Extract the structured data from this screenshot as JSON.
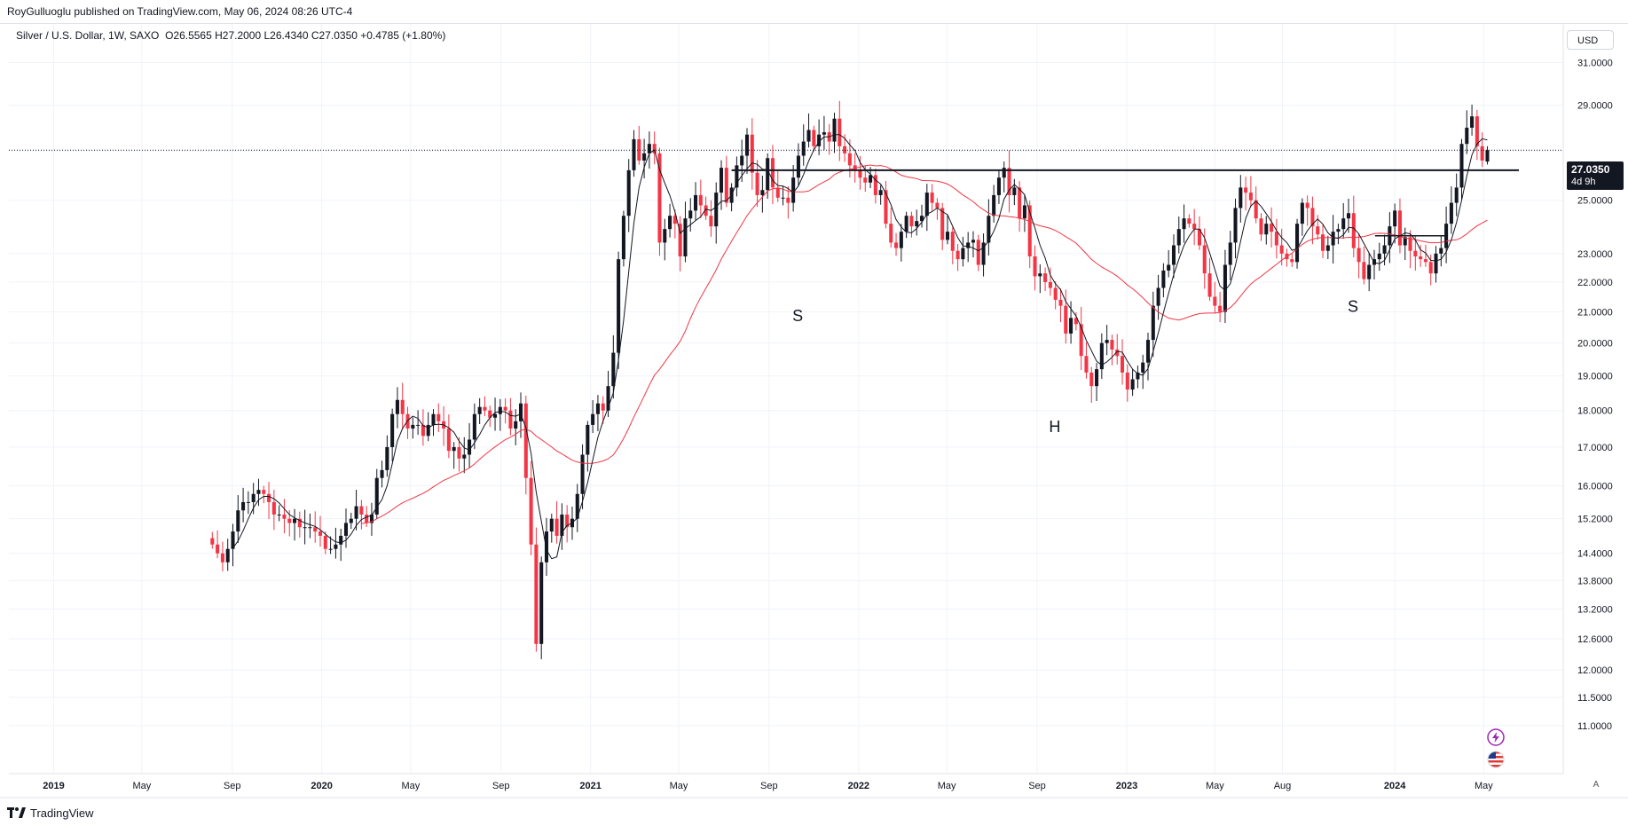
{
  "header": {
    "publisher_text": "RoyGulluoglu published on TradingView.com, May 06, 2024 08:26 UTC-4"
  },
  "legend": {
    "symbol": "Silver / U.S. Dollar, 1W, SAXO",
    "ohlc": "O26.5565  H27.2000  L26.4340  C27.0350  +0.4785 (+1.80%)"
  },
  "toolbar": {
    "currency_label": "USD",
    "auto_label": "A"
  },
  "last_price": {
    "value": "27.0350",
    "countdown": "4d 9h"
  },
  "footer": {
    "logo_text": "TradingView"
  },
  "icons": {
    "bolt": "bolt-icon",
    "flag": "us-flag-icon",
    "logo": "tradingview-logo-icon"
  },
  "colors": {
    "up": "#131722",
    "down": "#f23645",
    "sma_fast": "#131722",
    "sma_slow": "#f23645",
    "grid": "#f0f3fa"
  },
  "chart_data": {
    "type": "candlestick",
    "scale": "log",
    "y_ticks": [
      11.0,
      11.5,
      12.0,
      12.6,
      13.2,
      13.8,
      14.4,
      15.2,
      16.0,
      17.0,
      18.0,
      19.0,
      20.0,
      21.0,
      22.0,
      23.0,
      25.0,
      27.0,
      29.0,
      31.0
    ],
    "y_tick_labels": [
      "11.0000",
      "11.5000",
      "12.0000",
      "12.6000",
      "13.2000",
      "13.8000",
      "14.4000",
      "15.2000",
      "16.0000",
      "17.0000",
      "18.0000",
      "19.0000",
      "20.0000",
      "21.0000",
      "22.0000",
      "23.0000",
      "25.0000",
      "",
      "29.0000",
      "31.0000"
    ],
    "x_labels": [
      "2019",
      "May",
      "Sep",
      "2020",
      "May",
      "Sep",
      "2021",
      "May",
      "Sep",
      "2022",
      "May",
      "Sep",
      "2023",
      "May",
      "Aug",
      "2024",
      "May"
    ],
    "x_label_dates": [
      "2019-01-01",
      "2019-05-01",
      "2019-09-01",
      "2020-01-01",
      "2020-05-01",
      "2020-09-01",
      "2021-01-01",
      "2021-05-01",
      "2021-09-01",
      "2022-01-01",
      "2022-05-01",
      "2022-09-01",
      "2023-01-01",
      "2023-05-01",
      "2023-08-01",
      "2024-01-01",
      "2024-05-01"
    ],
    "x_bold": [
      true,
      false,
      false,
      true,
      false,
      false,
      true,
      false,
      false,
      true,
      false,
      false,
      true,
      false,
      false,
      true,
      false
    ],
    "x_range": [
      "2018-11-01",
      "2024-06-30"
    ],
    "weekly_close": [
      [
        14.6,
        14.4,
        14.2,
        14.5,
        14.9,
        15.4,
        15.6,
        15.6,
        15.8,
        15.9,
        15.8,
        15.6,
        15.3,
        15.3,
        15.2,
        15.1,
        15.2,
        15.0,
        15.0,
        15.0,
        14.9,
        14.8,
        14.5,
        14.5,
        14.6,
        14.8,
        15.1,
        15.2,
        15.5,
        15.3,
        15.1,
        15.3,
        16.2,
        16.4,
        17.0,
        17.9,
        18.3,
        17.9,
        17.5,
        17.6,
        17.6,
        17.3,
        17.6,
        17.9,
        17.7,
        17.5,
        16.9,
        17.0,
        16.7,
        16.8,
        17.2,
        17.9,
        18.1,
        18.0,
        17.8,
        17.9,
        18.1,
        18.0,
        17.5,
        17.7
      ],
      [
        18.2,
        16.2,
        14.6,
        12.5,
        14.2,
        14.9,
        15.2,
        14.8,
        15.3,
        15.0,
        15.2,
        15.8,
        16.8,
        17.6,
        17.9,
        18.2,
        18.0,
        18.7,
        19.7,
        22.8,
        24.4,
        26.2,
        27.5,
        26.6,
        26.9,
        27.3,
        26.9,
        23.4,
        23.9,
        24.4,
        24.1,
        22.9,
        24.3,
        24.6,
        25.2,
        24.8,
        24.4,
        24.0,
        25.3,
        26.3,
        24.9,
        25.5,
        26.4,
        26.8,
        27.7,
        26.1,
        25.2,
        25.4,
        26.7,
        25.5,
        25.1,
        25.1,
        24.9,
        25.9,
        26.8,
        27.4,
        27.9,
        27.2,
        27.7,
        27.8,
        27.4
      ],
      [
        28.4,
        27.2,
        26.9,
        26.4,
        26.2,
        25.9,
        25.7,
        26.0,
        25.2,
        25.4,
        24.1,
        23.4,
        23.2,
        23.8,
        24.4,
        24.0,
        24.2,
        24.4,
        25.3,
        24.9,
        24.7,
        23.5,
        23.8,
        23.1,
        22.8,
        23.2,
        23.4,
        23.5,
        22.6,
        23.4,
        24.4,
        25.2,
        25.9,
        26.3,
        25.2,
        25.5,
        24.3,
        24.8,
        22.9,
        22.2,
        22.3,
        22.0,
        21.8,
        21.4,
        21.2,
        20.3,
        20.8,
        20.6,
        19.6,
        19.1,
        18.7,
        19.2,
        20.0,
        20.1,
        19.8,
        19.6,
        19.1,
        18.6,
        18.9,
        19.1,
        19.4,
        20.1
      ],
      [
        21.2,
        21.8,
        22.4,
        22.6,
        23.3,
        23.9,
        24.3,
        24.1,
        23.9,
        23.3,
        22.3,
        21.5,
        21.2,
        21.0,
        22.6,
        23.4,
        24.7,
        25.5,
        25.3,
        25.0,
        24.3,
        23.7,
        24.1,
        23.8,
        23.3,
        23.0,
        22.8,
        22.7,
        24.1,
        24.9,
        24.7,
        24.0,
        23.7,
        23.1,
        23.3,
        23.8,
        23.9,
        24.3,
        24.5,
        23.2,
        22.7,
        22.1,
        22.6,
        22.8,
        23.0,
        23.3,
        24.0,
        24.6,
        23.3,
        23.6,
        23.1,
        22.9,
        22.8,
        22.7,
        22.3,
        23.0,
        23.2,
        24.1,
        24.9,
        25.5,
        27.3,
        28.0,
        28.5,
        27.2,
        26.6,
        27.0
      ]
    ],
    "series": [
      {
        "name": "",
        "kind": "sma",
        "period": 5
      },
      {
        "name": "",
        "kind": "sma",
        "period": 30
      }
    ],
    "annotations": [
      {
        "text": "S",
        "date": "2021-10-10",
        "price": 20.7
      },
      {
        "text": "H",
        "date": "2022-09-25",
        "price": 17.4
      },
      {
        "text": "S",
        "date": "2023-11-05",
        "price": 21.0
      }
    ],
    "neckline": {
      "price": 26.2,
      "from": "2021-07-12",
      "to": "2024-06-18"
    },
    "small_box": {
      "from": "2023-12-05",
      "to": "2024-03-10",
      "price_high": 23.65,
      "price_low": 23.2
    },
    "current_price_line": 27.035,
    "last_date": "2024-05-06",
    "grid": true,
    "legend_position": "top-left"
  }
}
